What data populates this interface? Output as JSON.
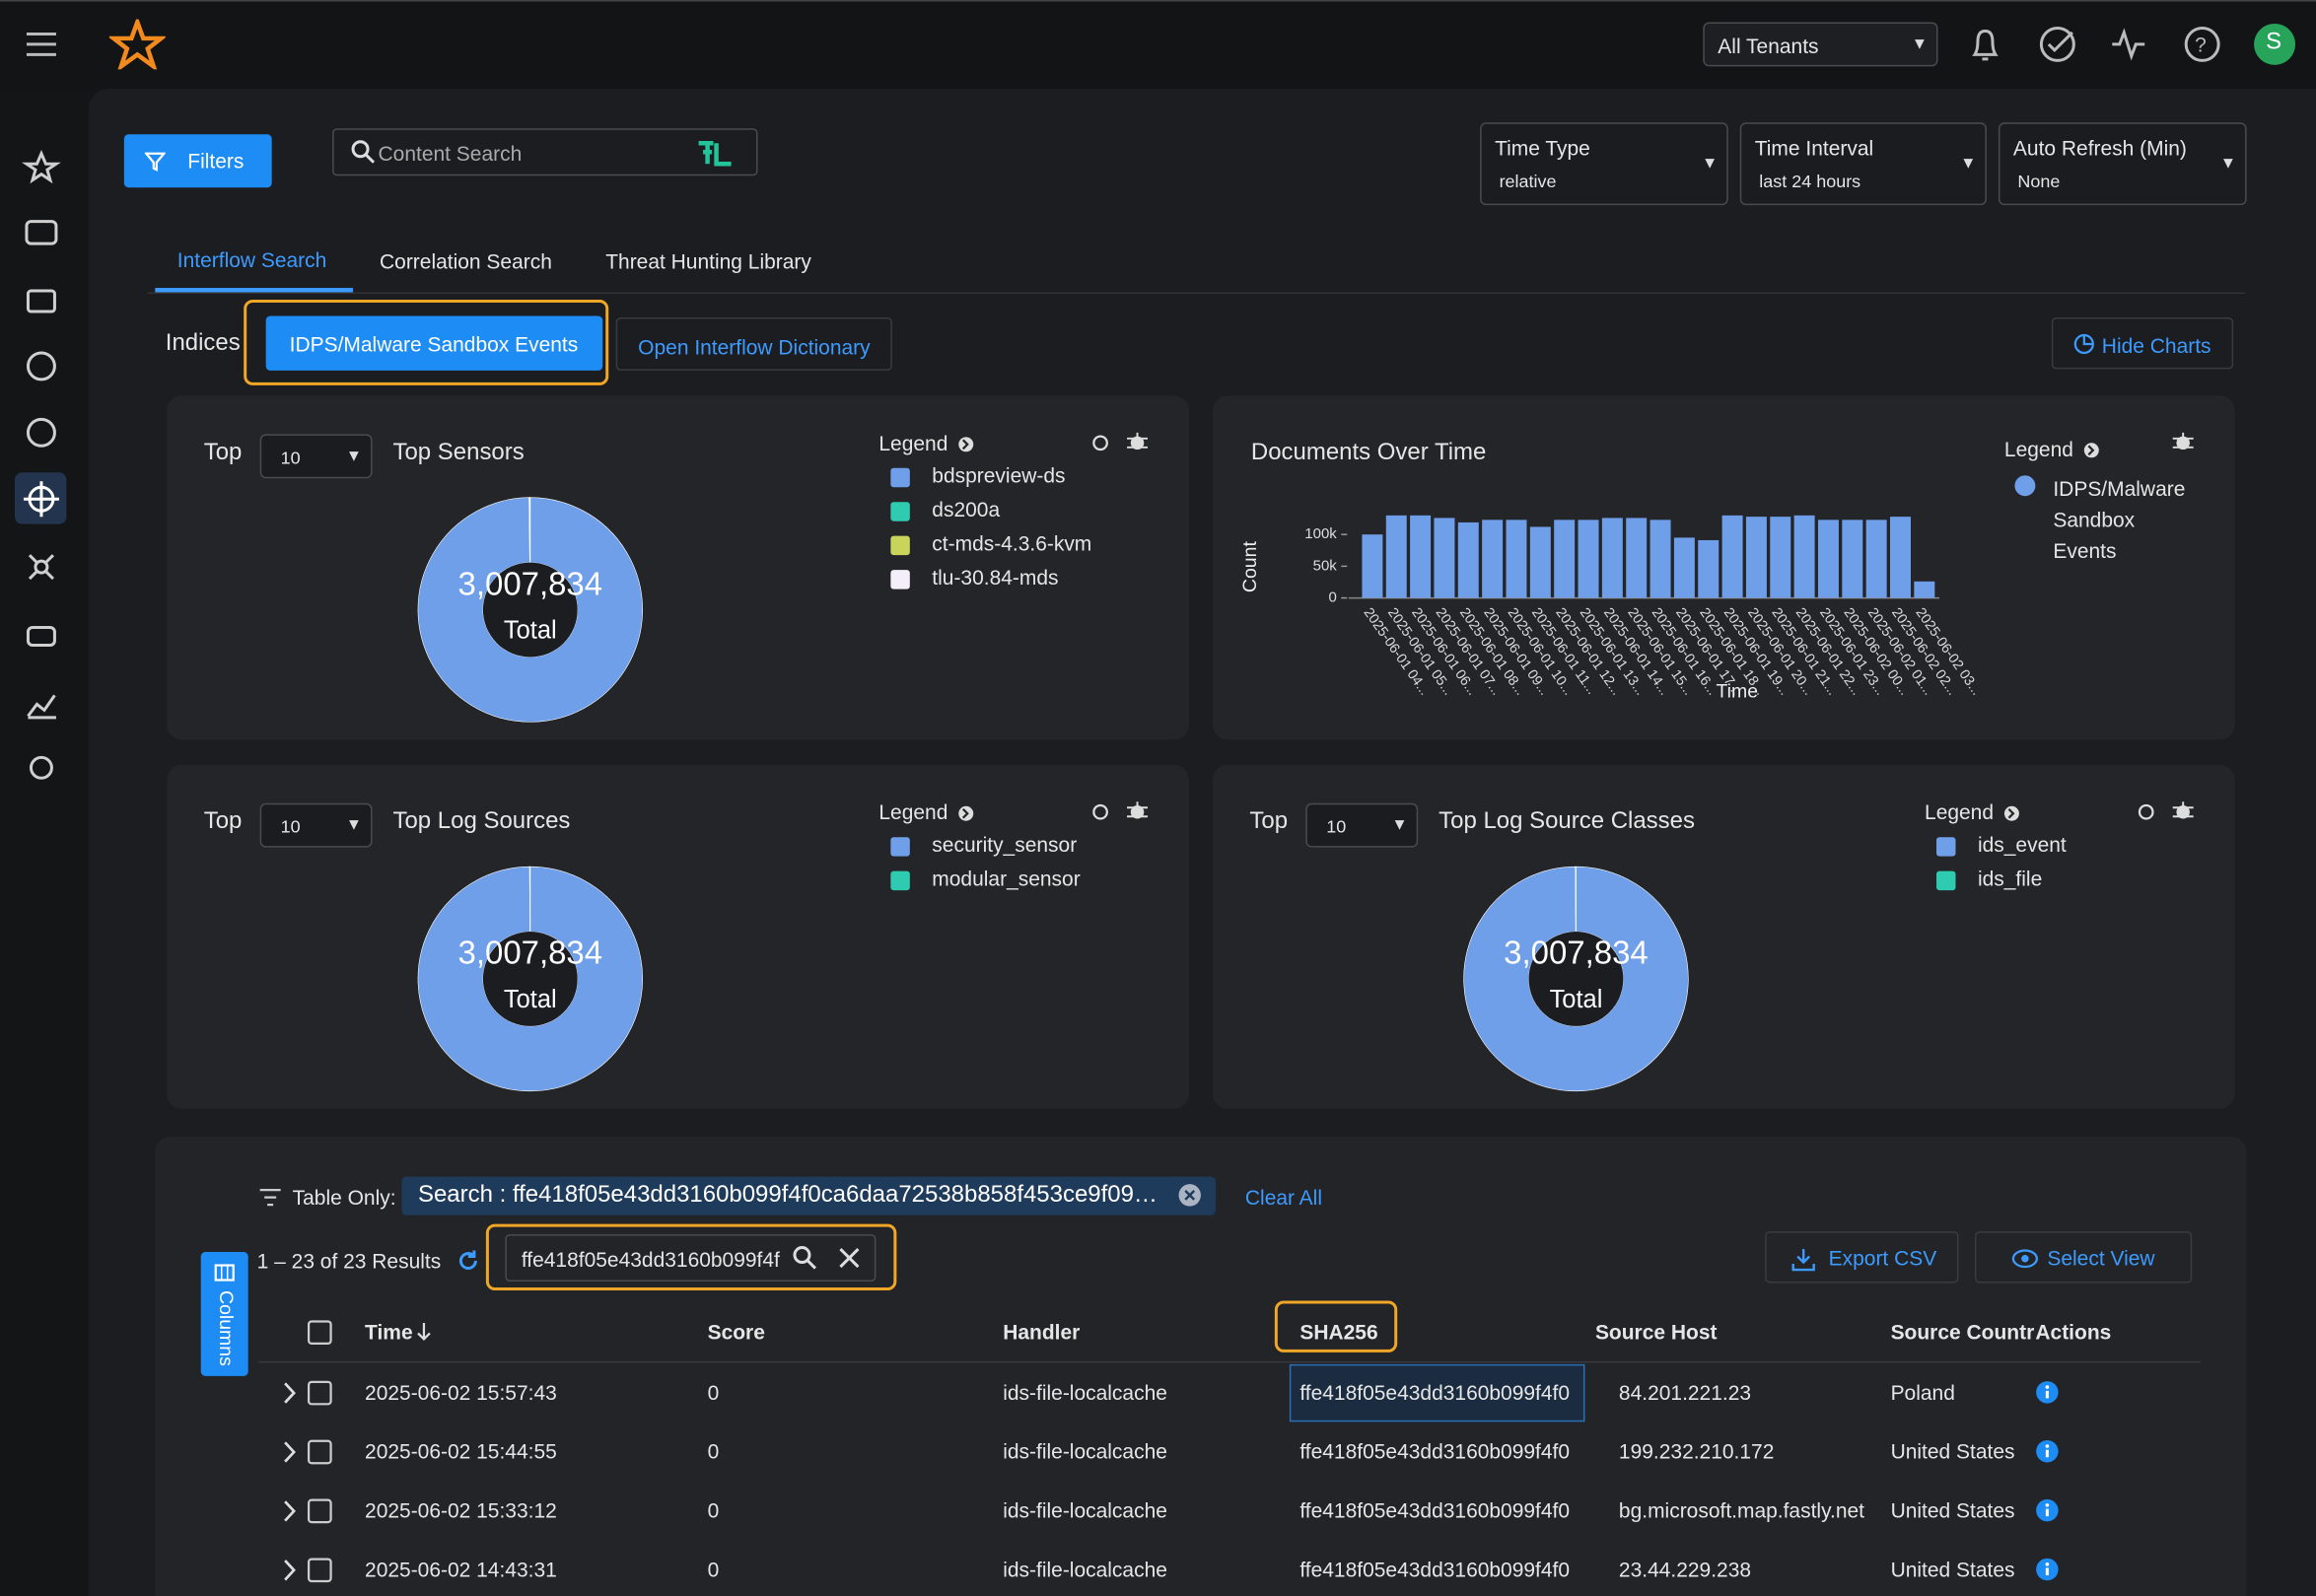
{
  "topbar": {
    "tenant": "All Tenants",
    "avatar": "S"
  },
  "toolbar": {
    "filters": "Filters",
    "search_placeholder": "Content Search",
    "time_type": {
      "label": "Time Type",
      "value": "relative"
    },
    "time_interval": {
      "label": "Time Interval",
      "value": "last 24 hours"
    },
    "auto_refresh": {
      "label": "Auto Refresh (Min)",
      "value": "None"
    }
  },
  "tabs": [
    "Interflow Search",
    "Correlation Search",
    "Threat Hunting Library"
  ],
  "indices": {
    "label": "Indices",
    "selected": "IDPS/Malware Sandbox Events",
    "dictionary": "Open Interflow Dictionary",
    "hide_charts": "Hide Charts"
  },
  "panels": [
    {
      "type": "pie",
      "top_label": "Top",
      "top_value": 10,
      "title": "Top Sensors",
      "legend_title": "Legend",
      "total": "3,007,834",
      "total_label": "Total",
      "series": [
        {
          "name": "bdspreview-ds",
          "color": "#6f9fe8",
          "value": 3003000
        },
        {
          "name": "ds200a",
          "color": "#2fcbb0",
          "value": 2000
        },
        {
          "name": "ct-mds-4.3.6-kvm",
          "color": "#c9d45b",
          "value": 1500
        },
        {
          "name": "tlu-30.84-mds",
          "color": "#f4eef9",
          "value": 1334
        }
      ]
    },
    {
      "type": "bar",
      "title": "Documents Over Time",
      "legend_title": "Legend",
      "y_label": "Count",
      "x_label": "Time",
      "series": [
        {
          "name": "IDPS/Malware Sandbox Events",
          "color": "#6f9fe8",
          "values": [
            100000,
            130000,
            130000,
            126000,
            119000,
            123000,
            123000,
            112000,
            123000,
            123000,
            126000,
            126000,
            123000,
            95000,
            91000,
            130000,
            128000,
            128000,
            130000,
            123000,
            123000,
            123000,
            128000,
            26000
          ]
        }
      ],
      "categories": [
        "2025-06-01 04...",
        "2025-06-01 05...",
        "2025-06-01 06...",
        "2025-06-01 07...",
        "2025-06-01 08...",
        "2025-06-01 09...",
        "2025-06-01 10...",
        "2025-06-01 11...",
        "2025-06-01 12...",
        "2025-06-01 13...",
        "2025-06-01 14...",
        "2025-06-01 15...",
        "2025-06-01 16...",
        "2025-06-01 17...",
        "2025-06-01 18...",
        "2025-06-01 19...",
        "2025-06-01 20...",
        "2025-06-01 21...",
        "2025-06-01 22...",
        "2025-06-01 23...",
        "2025-06-02 00...",
        "2025-06-02 01...",
        "2025-06-02 02...",
        "2025-06-02 03..."
      ],
      "ylim": [
        0,
        150000
      ],
      "yticks": [
        0,
        {
          "value": 50000,
          "label": "50k"
        },
        {
          "value": 100000,
          "label": "100k"
        }
      ]
    },
    {
      "type": "pie",
      "top_label": "Top",
      "top_value": 10,
      "title": "Top Log Sources",
      "legend_title": "Legend",
      "total": "3,007,834",
      "total_label": "Total",
      "series": [
        {
          "name": "security_sensor",
          "color": "#6f9fe8",
          "value": 3005000
        },
        {
          "name": "modular_sensor",
          "color": "#2fcbb0",
          "value": 2834
        }
      ]
    },
    {
      "type": "pie",
      "top_label": "Top",
      "top_value": 10,
      "title": "Top Log Source Classes",
      "legend_title": "Legend",
      "total": "3,007,834",
      "total_label": "Total",
      "series": [
        {
          "name": "ids_event",
          "color": "#6f9fe8",
          "value": 3005000
        },
        {
          "name": "ids_file",
          "color": "#2fcbb0",
          "value": 2834
        }
      ]
    }
  ],
  "table": {
    "filter_label": "Table Only:",
    "chip": "Search : ffe418f05e43dd3160b099f4f0ca6daa72538b858f453ce9f09…",
    "clear_all": "Clear All",
    "results": "1 – 23 of 23 Results",
    "search_value": "ffe418f05e43dd3160b099f4f",
    "export": "Export CSV",
    "select_view": "Select View",
    "columns_button": "Columns",
    "headers": [
      "Time",
      "Score",
      "Handler",
      "SHA256",
      "Source Host",
      "Source Countr",
      "Actions"
    ],
    "rows": [
      [
        "2025-06-02 15:57:43",
        0,
        "ids-file-localcache",
        "ffe418f05e43dd3160b099f4f0",
        "84.201.221.23",
        "Poland"
      ],
      [
        "2025-06-02 15:44:55",
        0,
        "ids-file-localcache",
        "ffe418f05e43dd3160b099f4f0",
        "199.232.210.172",
        "United States"
      ],
      [
        "2025-06-02 15:33:12",
        0,
        "ids-file-localcache",
        "ffe418f05e43dd3160b099f4f0",
        "bg.microsoft.map.fastly.net",
        "United States"
      ],
      [
        "2025-06-02 14:43:31",
        0,
        "ids-file-localcache",
        "ffe418f05e43dd3160b099f4f0",
        "23.44.229.238",
        "United States"
      ]
    ]
  }
}
